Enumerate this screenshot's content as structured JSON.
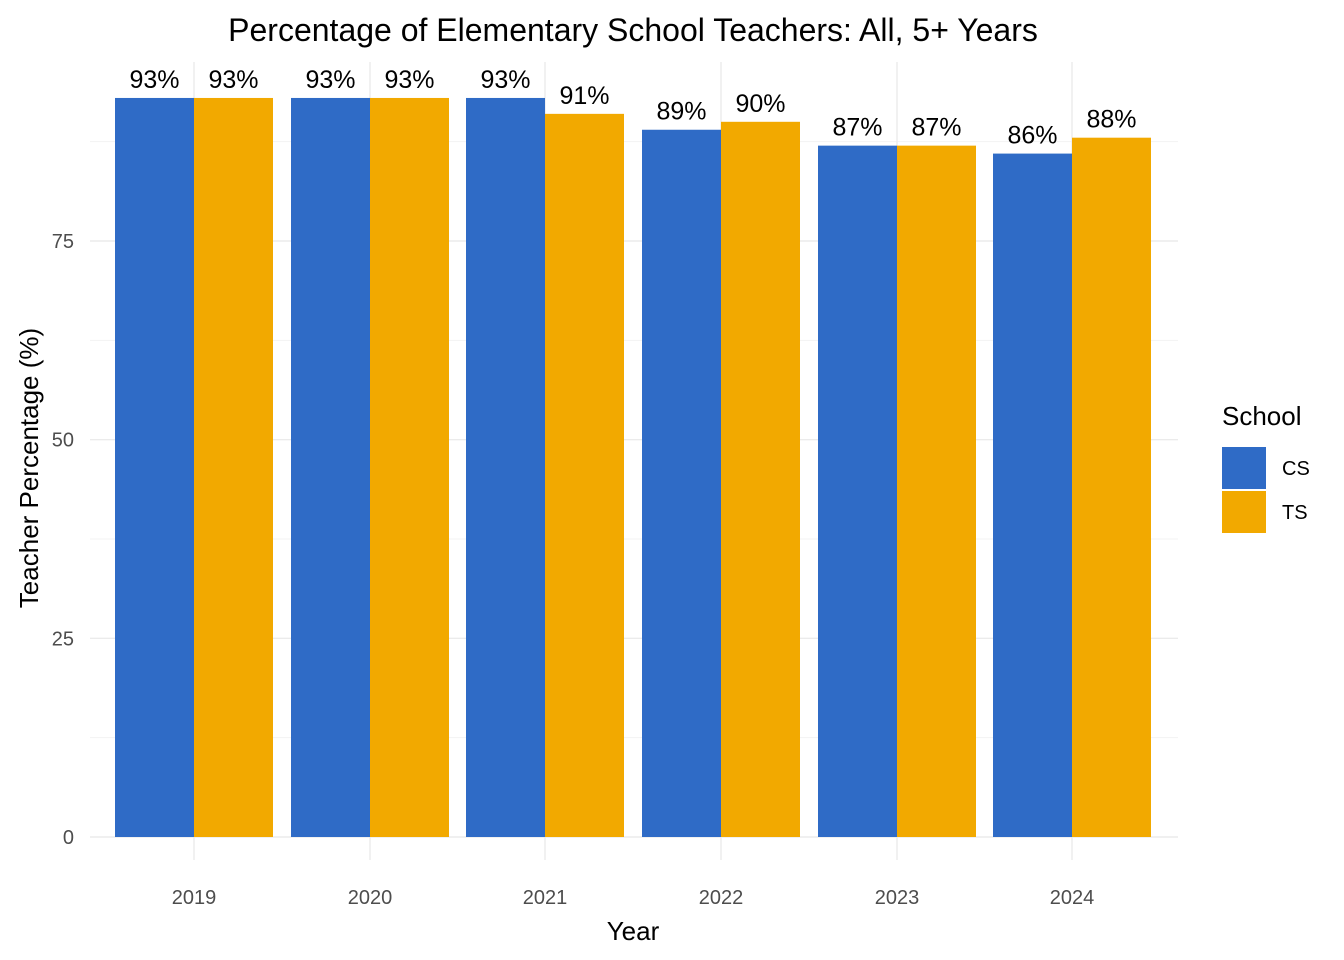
{
  "chart_data": {
    "type": "bar",
    "title": "Percentage of Elementary School Teachers: All, 5+ Years",
    "xlabel": "Year",
    "ylabel": "Teacher Percentage (%)",
    "categories": [
      "2019",
      "2020",
      "2021",
      "2022",
      "2023",
      "2024"
    ],
    "series": [
      {
        "name": "CS",
        "color": "#2F6BC6",
        "values": [
          93,
          93,
          93,
          89,
          87,
          86
        ],
        "labels": [
          "93%",
          "93%",
          "93%",
          "89%",
          "87%",
          "86%"
        ]
      },
      {
        "name": "TS",
        "color": "#F2A900",
        "values": [
          93,
          93,
          91,
          90,
          87,
          88
        ],
        "labels": [
          "93%",
          "93%",
          "91%",
          "90%",
          "87%",
          "88%"
        ]
      }
    ],
    "yticks": [
      0,
      25,
      50,
      75
    ],
    "ytick_labels": [
      "0",
      "25",
      "50",
      "75"
    ],
    "ylim": [
      0,
      98
    ],
    "grid": true,
    "legend": {
      "title": "School",
      "position": "right"
    }
  }
}
